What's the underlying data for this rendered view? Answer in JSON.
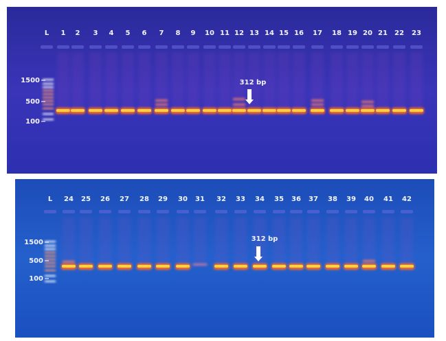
{
  "panels": [
    {
      "lanes": [
        "L",
        "1",
        "2",
        "3",
        "4",
        "5",
        "6",
        "7",
        "8",
        "9",
        "10",
        "11",
        "12",
        "13",
        "14",
        "15",
        "16",
        "17",
        "18",
        "19",
        "20",
        "21",
        "22",
        "23"
      ],
      "size_markers": [
        "1500",
        "500",
        "100"
      ],
      "annotation": "312 bp"
    },
    {
      "lanes": [
        "L",
        "24",
        "25",
        "26",
        "27",
        "28",
        "29",
        "30",
        "31",
        "32",
        "33",
        "34",
        "35",
        "36",
        "37",
        "38",
        "39",
        "40",
        "41",
        "42"
      ],
      "size_markers": [
        "1500",
        "500",
        "100"
      ],
      "annotation": "312 bp"
    }
  ]
}
